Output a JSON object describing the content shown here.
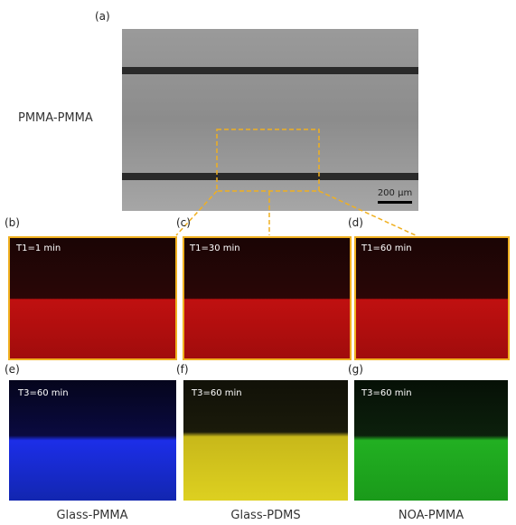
{
  "panels": {
    "a": {
      "label": "(a)",
      "side_label": "PMMA-PMMA",
      "scale_bar": "200 μm"
    },
    "b": {
      "label": "(b)",
      "time": "T1=1 min"
    },
    "c": {
      "label": "(c)",
      "time": "T1=30 min"
    },
    "d": {
      "label": "(d)",
      "time": "T1=60 min"
    },
    "e": {
      "label": "(e)",
      "time": "T3=60 min",
      "caption": "Glass-PMMA"
    },
    "f": {
      "label": "(f)",
      "time": "T3=60 min",
      "caption": "Glass-PDMS"
    },
    "g": {
      "label": "(g)",
      "time": "T3=60 min",
      "caption": "NOA-PMMA"
    }
  }
}
